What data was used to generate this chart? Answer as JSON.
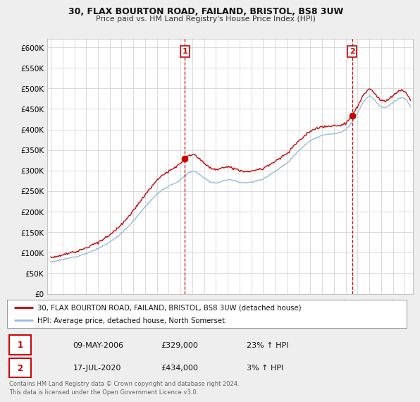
{
  "title1": "30, FLAX BOURTON ROAD, FAILAND, BRISTOL, BS8 3UW",
  "title2": "Price paid vs. HM Land Registry's House Price Index (HPI)",
  "ylim": [
    0,
    620000
  ],
  "yticks": [
    0,
    50000,
    100000,
    150000,
    200000,
    250000,
    300000,
    350000,
    400000,
    450000,
    500000,
    550000,
    600000
  ],
  "xlim_start": 1994.7,
  "xlim_end": 2025.7,
  "bg_color": "#eeeeee",
  "plot_bg_color": "#ffffff",
  "grid_color": "#cccccc",
  "line1_color": "#cc0000",
  "line2_color": "#99bbdd",
  "sale1_year": 2006.36,
  "sale1_price": 329000,
  "sale2_year": 2020.54,
  "sale2_price": 434000,
  "legend_line1": "30, FLAX BOURTON ROAD, FAILAND, BRISTOL, BS8 3UW (detached house)",
  "legend_line2": "HPI: Average price, detached house, North Somerset",
  "table_data": [
    [
      "1",
      "09-MAY-2006",
      "£329,000",
      "23% ↑ HPI"
    ],
    [
      "2",
      "17-JUL-2020",
      "£434,000",
      "3% ↑ HPI"
    ]
  ],
  "footer": "Contains HM Land Registry data © Crown copyright and database right 2024.\nThis data is licensed under the Open Government Licence v3.0.",
  "vline_color": "#cc0000",
  "hpi_years": [
    1995,
    1996,
    1997,
    1998,
    1999,
    2000,
    2001,
    2002,
    2003,
    2004,
    2005,
    2006,
    2007,
    2008,
    2009,
    2010,
    2011,
    2012,
    2013,
    2014,
    2015,
    2016,
    2017,
    2018,
    2019,
    2020,
    2021,
    2022,
    2023,
    2024,
    2025
  ],
  "hpi_values": [
    78000,
    83000,
    90000,
    98000,
    110000,
    126000,
    148000,
    178000,
    212000,
    242000,
    262000,
    278000,
    298000,
    282000,
    270000,
    278000,
    272000,
    272000,
    280000,
    298000,
    318000,
    348000,
    372000,
    385000,
    390000,
    400000,
    440000,
    480000,
    455000,
    465000,
    475000
  ]
}
